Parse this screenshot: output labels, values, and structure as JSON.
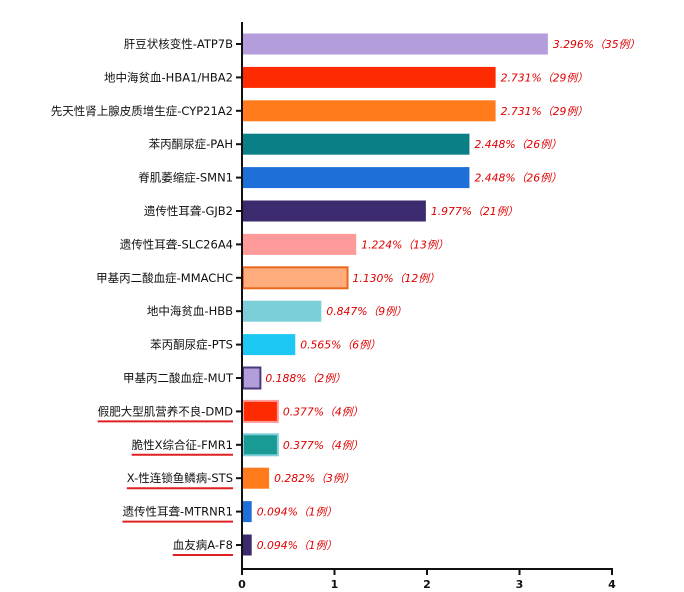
{
  "chart_data": {
    "type": "bar",
    "orientation": "horizontal",
    "categories": [
      "肝豆状核变性-ATP7B",
      "地中海贫血-HBA1/HBA2",
      "先天性肾上腺皮质增生症-CYP21A2",
      "苯丙酮尿症-PAH",
      "脊肌萎缩症-SMN1",
      "遗传性耳聋-GJB2",
      "遗传性耳聋-SLC26A4",
      "甲基丙二酸血症-MMACHC",
      "地中海贫血-HBB",
      "苯丙酮尿症-PTS",
      "甲基丙二酸血症-MUT",
      "假肥大型肌营养不良-DMD",
      "脆性X综合征-FMR1",
      "X-性连锁鱼鳞病-STS",
      "遗传性耳聋-MTRNR1",
      "血友病A-F8"
    ],
    "values": [
      3.296,
      2.731,
      2.731,
      2.448,
      2.448,
      1.977,
      1.224,
      1.13,
      0.847,
      0.565,
      0.188,
      0.377,
      0.377,
      0.282,
      0.094,
      0.094
    ],
    "value_labels": [
      "3.296%（35例）",
      "2.731%（29例）",
      "2.731%（29例）",
      "2.448%（26例）",
      "2.448%（26例）",
      "1.977%（21例）",
      "1.224%（13例）",
      "1.130%（12例）",
      "0.847%（9例）",
      "0.565%（6例）",
      "0.188%（2例）",
      "0.377%（4例）",
      "0.377%（4例）",
      "0.282%（3例）",
      "0.094%（1例）",
      "0.094%（1例）"
    ],
    "colors": [
      "#b39ddb",
      "#ff2b00",
      "#ff7b1c",
      "#0a7f85",
      "#1f6fd8",
      "#3b2a6e",
      "#ff9a9a",
      "#ffad7d",
      "#7ccfd8",
      "#1ec8f5",
      "#b39ddb",
      "#ff2b00",
      "#1a9a95",
      "#ff7b1c",
      "#1f6fd8",
      "#3b2a6e"
    ],
    "outlined": [
      false,
      false,
      false,
      false,
      false,
      false,
      false,
      true,
      false,
      false,
      true,
      true,
      true,
      false,
      false,
      false
    ],
    "outline_colors": [
      "",
      "",
      "",
      "",
      "",
      "",
      "",
      "#e86a1f",
      "",
      "",
      "#4b3a7a",
      "#ff9a9a",
      "#7ccfd8",
      "",
      "",
      ""
    ],
    "underlined": [
      false,
      false,
      false,
      false,
      false,
      false,
      false,
      false,
      false,
      false,
      false,
      true,
      true,
      true,
      true,
      true
    ],
    "underline_color": "#e02020",
    "xlim": [
      0,
      4
    ],
    "xticks": [
      "0",
      "1",
      "2",
      "3",
      "4"
    ],
    "title": "",
    "xlabel": "",
    "ylabel": "",
    "grid": false,
    "legend": "none"
  }
}
